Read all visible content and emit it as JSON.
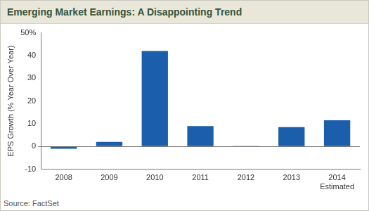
{
  "chart_data": {
    "type": "bar",
    "title": "Emerging Market Earnings: A Disappointing Trend",
    "y_label": "EPS Growth (% Year Over Year)",
    "source": "Source: FactSet",
    "categories": [
      "2008",
      "2009",
      "2010",
      "2011",
      "2012",
      "2013",
      "2014 Estimated"
    ],
    "values": [
      -1,
      2,
      42,
      9,
      0.2,
      8.5,
      11.5
    ],
    "color": "#1b5eac",
    "ylim": [
      -10,
      50
    ],
    "yticks": [
      -10,
      0,
      10,
      20,
      30,
      40,
      {
        "value": 50,
        "label": "50%"
      }
    ],
    "grid": false
  }
}
